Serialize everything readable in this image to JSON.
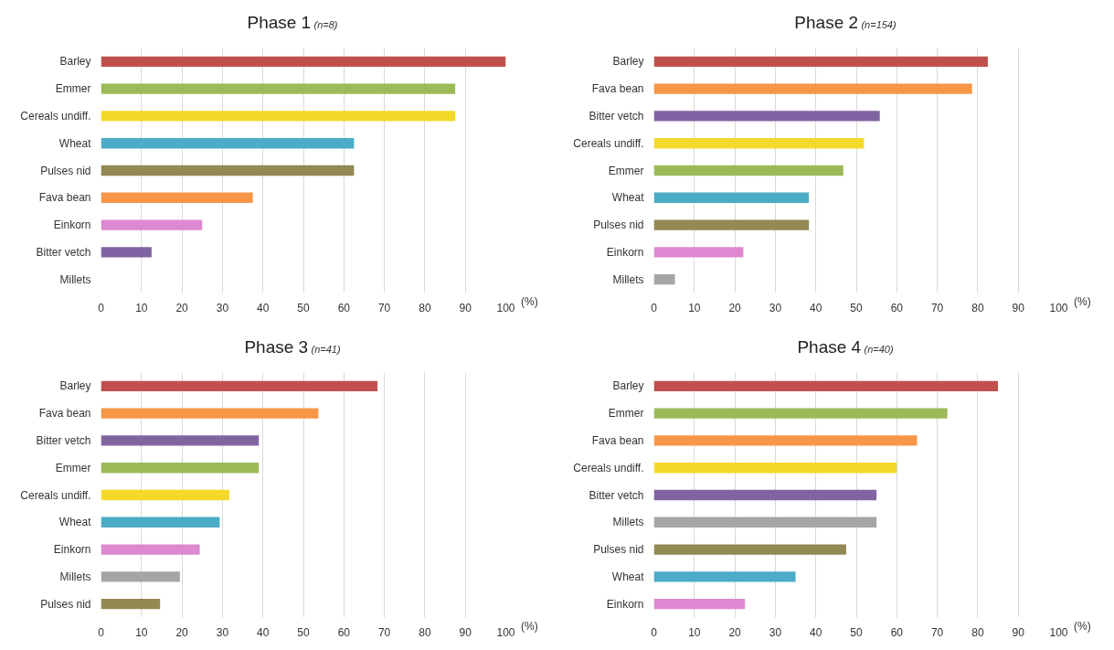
{
  "chart_data": [
    {
      "type": "bar",
      "orientation": "horizontal",
      "title": "Phase 1",
      "subtitle": "(n=8)",
      "xlabel": "(%)",
      "categories": [
        "Barley",
        "Emmer",
        "Cereals undiff.",
        "Wheat",
        "Pulses nid",
        "Fava bean",
        "Einkorn",
        "Bitter vetch",
        "Millets"
      ],
      "values": [
        100,
        87.5,
        87.5,
        62.5,
        62.5,
        37.5,
        25,
        12.5,
        0
      ],
      "colors": [
        "#c0504d",
        "#9bbb59",
        "#f5d92a",
        "#4bacc6",
        "#938953",
        "#f79646",
        "#dd88d0",
        "#8064a2",
        "#a5a5a5"
      ],
      "xlim": [
        0,
        100
      ],
      "xticks": [
        0,
        10,
        20,
        30,
        40,
        50,
        60,
        70,
        80,
        90,
        100
      ],
      "grid": "x"
    },
    {
      "type": "bar",
      "orientation": "horizontal",
      "title": "Phase 2",
      "subtitle": "(n=154)",
      "xlabel": "(%)",
      "categories": [
        "Barley",
        "Fava bean",
        "Bitter vetch",
        "Cereals undiff.",
        "Emmer",
        "Wheat",
        "Pulses nid",
        "Einkorn",
        "Millets"
      ],
      "values": [
        82.5,
        78.6,
        55.8,
        51.9,
        46.8,
        38.3,
        38.3,
        22.1,
        5.2
      ],
      "colors": [
        "#c0504d",
        "#f79646",
        "#8064a2",
        "#f5d92a",
        "#9bbb59",
        "#4bacc6",
        "#938953",
        "#dd88d0",
        "#a5a5a5"
      ],
      "xlim": [
        0,
        100
      ],
      "xticks": [
        0,
        10,
        20,
        30,
        40,
        50,
        60,
        70,
        80,
        90,
        100
      ],
      "grid": "x"
    },
    {
      "type": "bar",
      "orientation": "horizontal",
      "title": "Phase 3",
      "subtitle": "(n=41)",
      "xlabel": "(%)",
      "categories": [
        "Barley",
        "Fava bean",
        "Bitter vetch",
        "Emmer",
        "Cereals undiff.",
        "Wheat",
        "Einkorn",
        "Millets",
        "Pulses nid"
      ],
      "values": [
        68.3,
        53.7,
        39.0,
        39.0,
        31.7,
        29.3,
        24.4,
        19.5,
        14.6
      ],
      "colors": [
        "#c0504d",
        "#f79646",
        "#8064a2",
        "#9bbb59",
        "#f5d92a",
        "#4bacc6",
        "#dd88d0",
        "#a5a5a5",
        "#938953"
      ],
      "xlim": [
        0,
        100
      ],
      "xticks": [
        0,
        10,
        20,
        30,
        40,
        50,
        60,
        70,
        80,
        90,
        100
      ],
      "grid": "x"
    },
    {
      "type": "bar",
      "orientation": "horizontal",
      "title": "Phase 4",
      "subtitle": "(n=40)",
      "xlabel": "(%)",
      "categories": [
        "Barley",
        "Emmer",
        "Fava bean",
        "Cereals undiff.",
        "Bitter vetch",
        "Millets",
        "Pulses nid",
        "Wheat",
        "Einkorn"
      ],
      "values": [
        85,
        72.5,
        65,
        60,
        55,
        55,
        47.5,
        35,
        22.5
      ],
      "colors": [
        "#c0504d",
        "#9bbb59",
        "#f79646",
        "#f5d92a",
        "#8064a2",
        "#a5a5a5",
        "#938953",
        "#4bacc6",
        "#dd88d0"
      ],
      "xlim": [
        0,
        100
      ],
      "xticks": [
        0,
        10,
        20,
        30,
        40,
        50,
        60,
        70,
        80,
        90,
        100
      ],
      "grid": "x"
    }
  ]
}
